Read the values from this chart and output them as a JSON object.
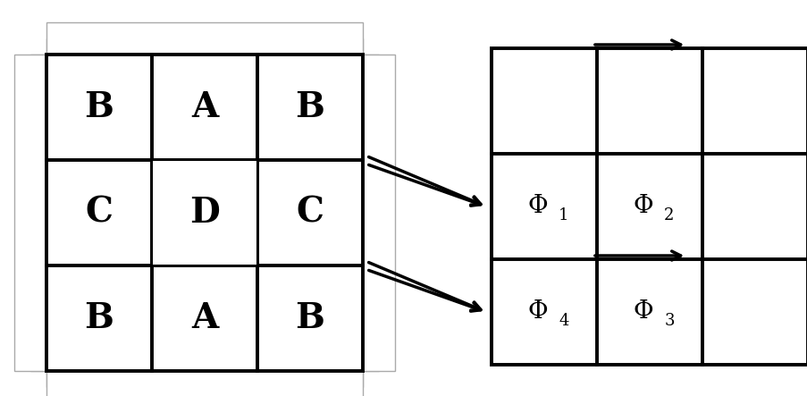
{
  "fig_width": 9.04,
  "fig_height": 4.43,
  "dpi": 100,
  "background_color": "#ffffff",
  "left_labels": [
    [
      "B",
      "A",
      "B"
    ],
    [
      "C",
      "D",
      "C"
    ],
    [
      "B",
      "A",
      "B"
    ]
  ],
  "arrow_color": "#000000",
  "grid_color": "#000000",
  "shadow_color": "#aaaaaa",
  "label_fontsize": 28,
  "phi_fontsize": 20,
  "phi_sub_fontsize": 13
}
